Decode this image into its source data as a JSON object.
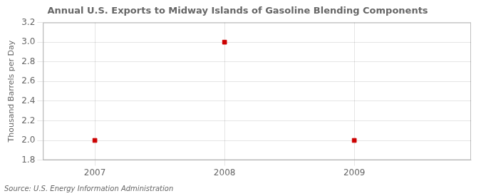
{
  "chart_data": {
    "type": "scatter",
    "title": "Annual U.S. Exports to Midway Islands of Gasoline Blending Components",
    "ylabel": "Thousand Barrels per Day",
    "annotations": [
      "Source: U.S. Energy Information Administration"
    ],
    "x": [
      2007,
      2008,
      2009
    ],
    "values": [
      2.0,
      3.0,
      2.0
    ],
    "color": "#cc0000",
    "marker": "square",
    "xlim": [
      2006.6,
      2009.9
    ],
    "xticks": [
      2007,
      2008,
      2009
    ],
    "ylim": [
      1.8,
      3.2
    ],
    "yticks": [
      1.8,
      {
        "value": 2.0,
        "label": "2.0"
      },
      2.2,
      2.4,
      2.6,
      2.8,
      {
        "value": 3.0,
        "label": "3.0"
      },
      3.2
    ],
    "grid": true
  }
}
